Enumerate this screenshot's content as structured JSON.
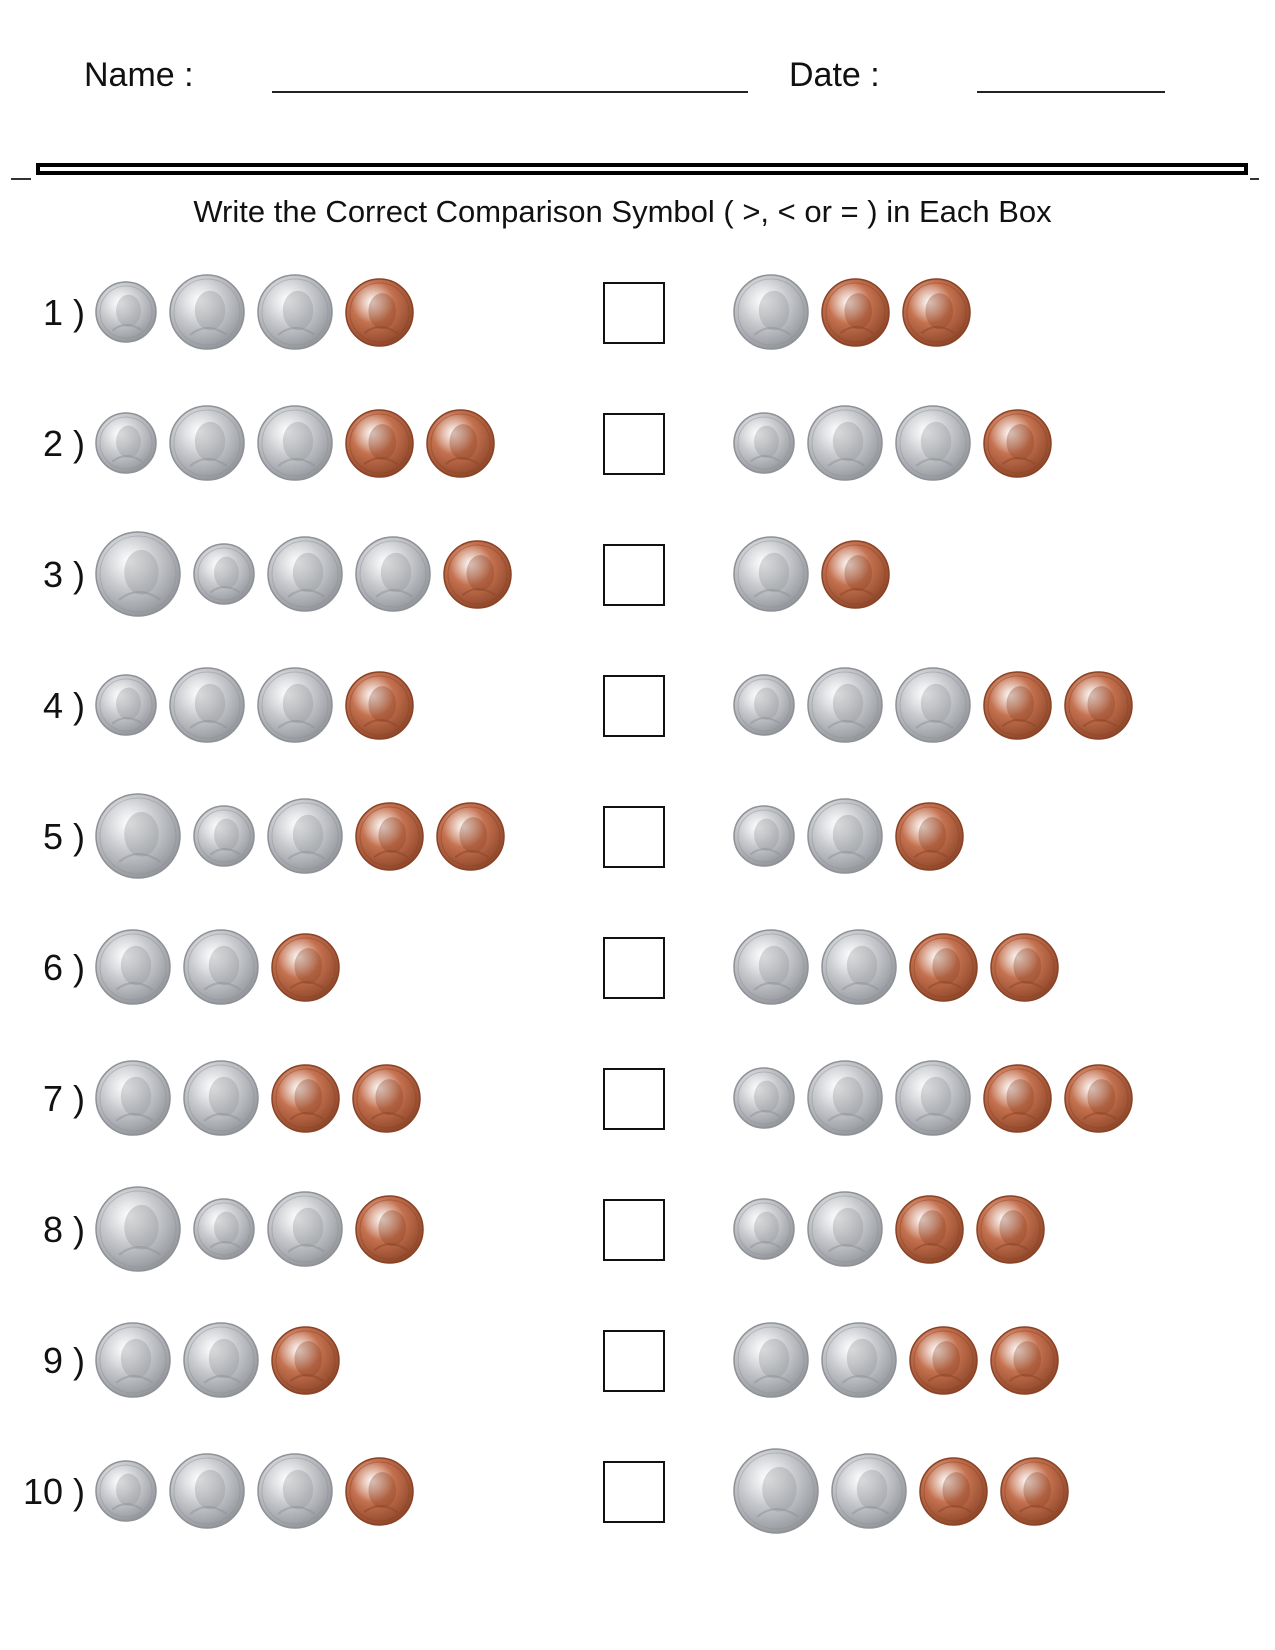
{
  "header": {
    "name_label": "Name :",
    "date_label": "Date :"
  },
  "instructions": "Write the Correct Comparison Symbol (  >, < or = ) in Each Box",
  "colors": {
    "silver": "#c9cbcf",
    "silver_dark": "#8e9196",
    "copper": "#c4714f",
    "copper_dark": "#8a4326"
  },
  "problems": [
    {
      "number": "1 )",
      "left": [
        "dime",
        "nickel",
        "nickel",
        "penny"
      ],
      "right": [
        "nickel",
        "penny",
        "penny"
      ]
    },
    {
      "number": "2 )",
      "left": [
        "dime",
        "nickel",
        "nickel",
        "penny",
        "penny"
      ],
      "right": [
        "dime",
        "nickel",
        "nickel",
        "penny"
      ]
    },
    {
      "number": "3 )",
      "left": [
        "quarter",
        "dime",
        "nickel",
        "nickel",
        "penny"
      ],
      "right": [
        "nickel",
        "penny"
      ]
    },
    {
      "number": "4 )",
      "left": [
        "dime",
        "nickel",
        "nickel",
        "penny"
      ],
      "right": [
        "dime",
        "nickel",
        "nickel",
        "penny",
        "penny"
      ]
    },
    {
      "number": "5 )",
      "left": [
        "quarter",
        "dime",
        "nickel",
        "penny",
        "penny"
      ],
      "right": [
        "dime",
        "nickel",
        "penny"
      ]
    },
    {
      "number": "6 )",
      "left": [
        "nickel",
        "nickel",
        "penny"
      ],
      "right": [
        "nickel",
        "nickel",
        "penny",
        "penny"
      ]
    },
    {
      "number": "7 )",
      "left": [
        "nickel",
        "nickel",
        "penny",
        "penny"
      ],
      "right": [
        "dime",
        "nickel",
        "nickel",
        "penny",
        "penny"
      ]
    },
    {
      "number": "8 )",
      "left": [
        "quarter",
        "dime",
        "nickel",
        "penny"
      ],
      "right": [
        "dime",
        "nickel",
        "penny",
        "penny"
      ]
    },
    {
      "number": "9 )",
      "left": [
        "nickel",
        "nickel",
        "penny"
      ],
      "right": [
        "nickel",
        "nickel",
        "penny",
        "penny"
      ]
    },
    {
      "number": "10 )",
      "left": [
        "dime",
        "nickel",
        "nickel",
        "penny"
      ],
      "right": [
        "quarter",
        "nickel",
        "penny",
        "penny"
      ]
    }
  ]
}
